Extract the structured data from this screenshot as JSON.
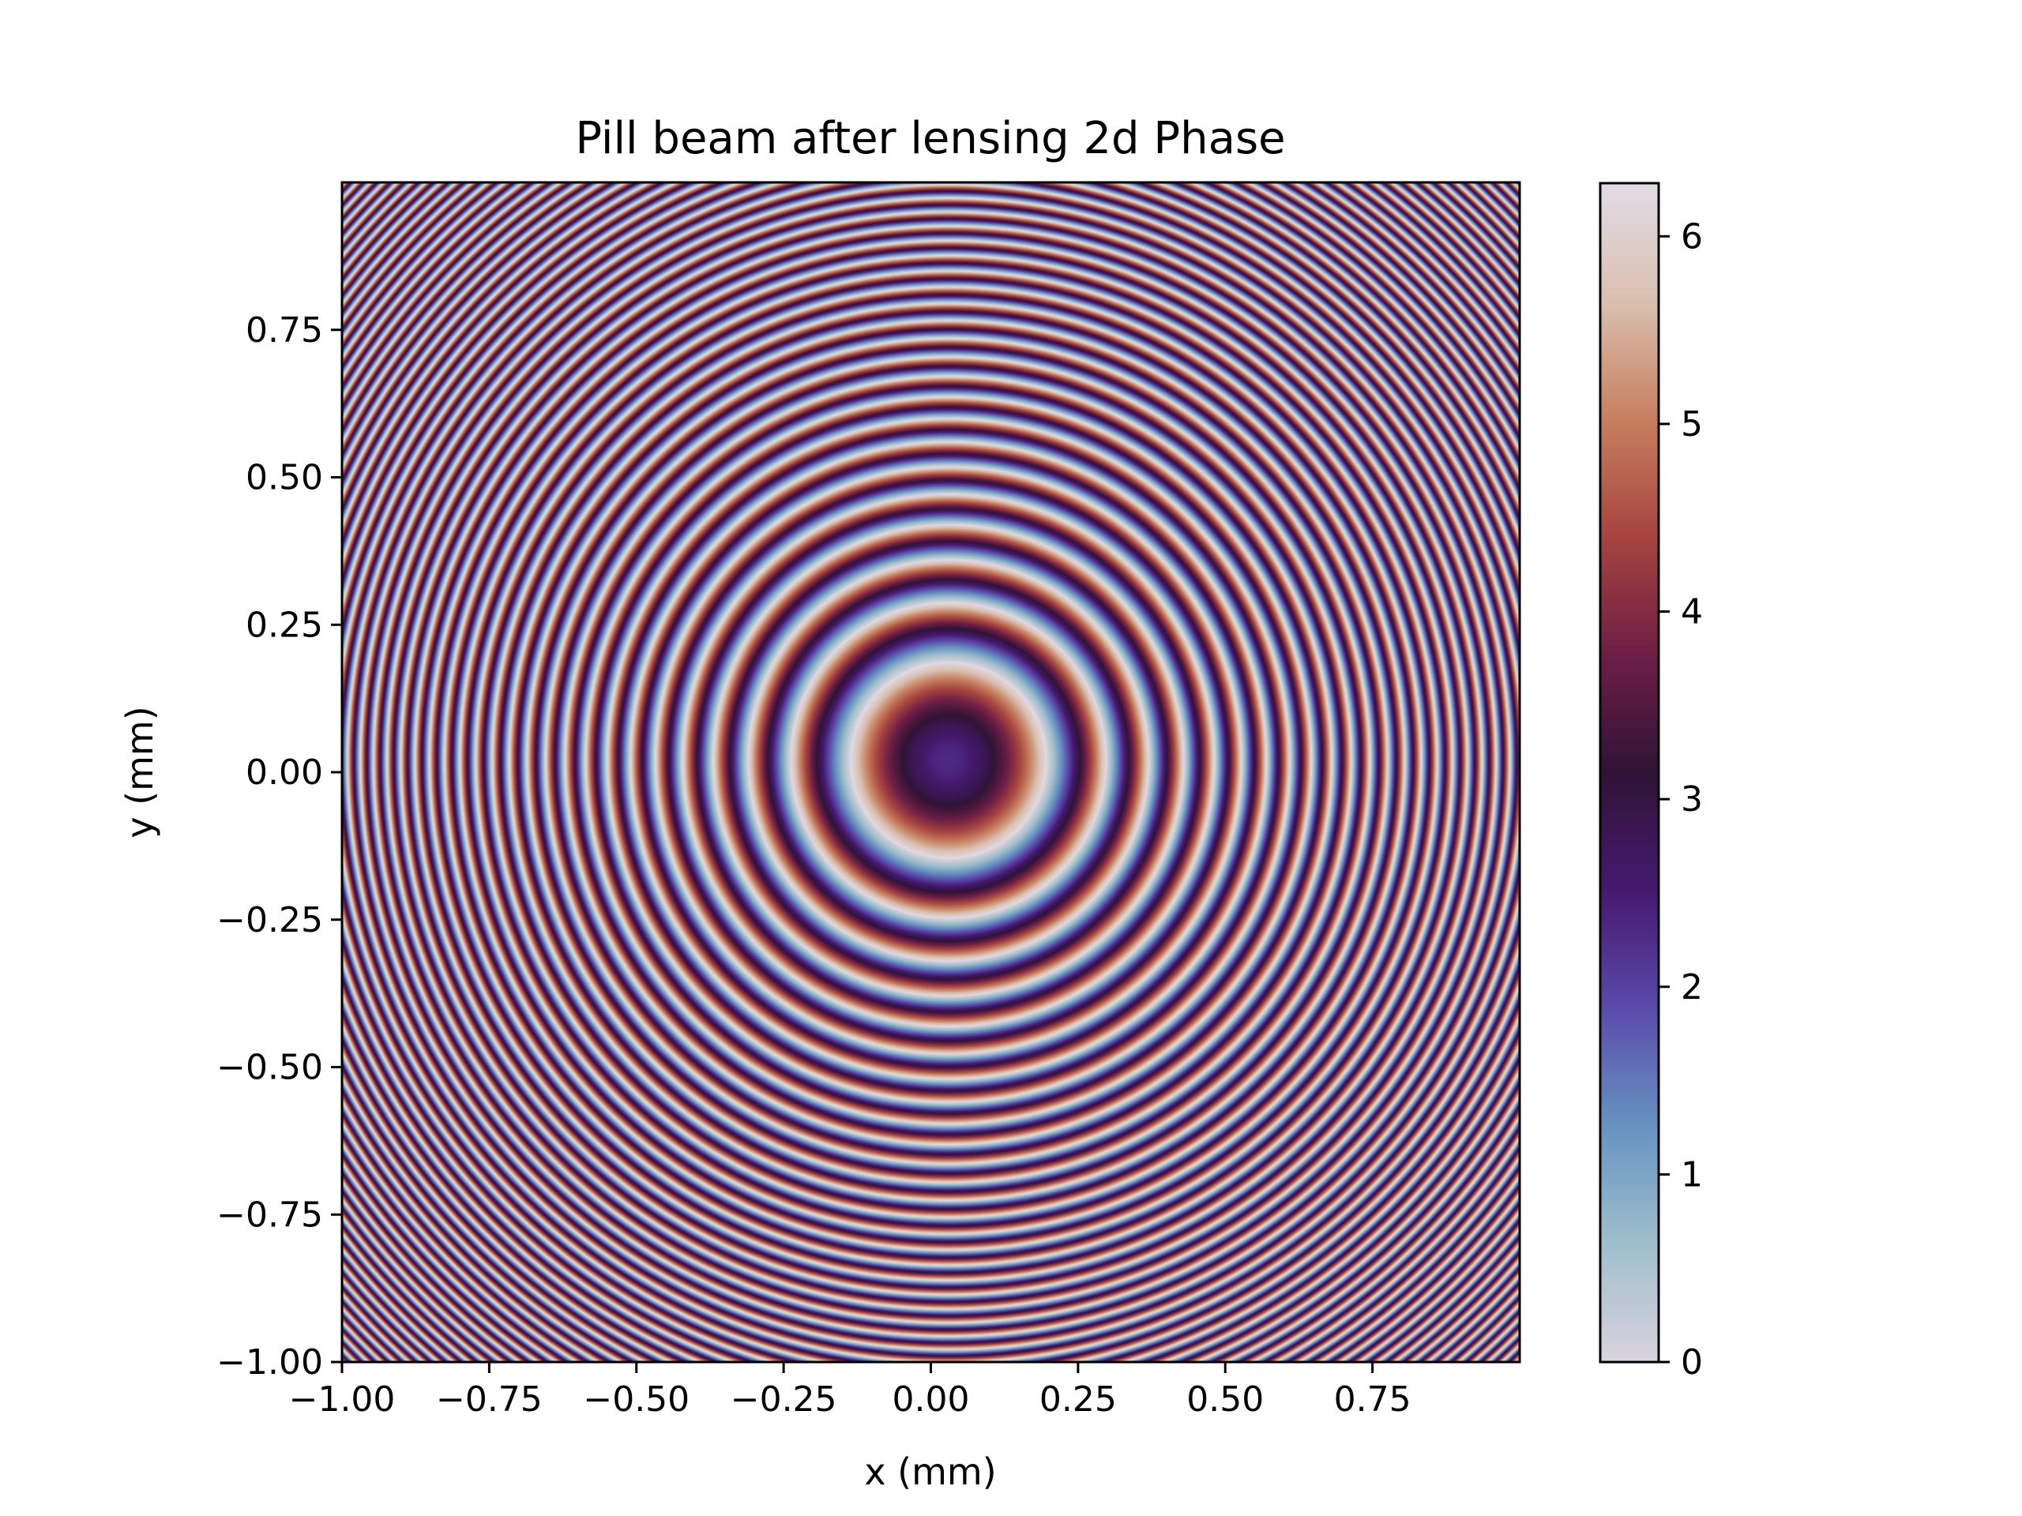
{
  "chart_data": {
    "type": "heatmap",
    "title": "Pill beam after lensing 2d Phase",
    "xlabel": "x (mm)",
    "ylabel": "y (mm)",
    "xlim": [
      -1.0,
      1.0
    ],
    "ylim": [
      -1.0,
      1.0
    ],
    "x_ticks": [
      "−1.00",
      "−0.75",
      "−0.50",
      "−0.25",
      "0.00",
      "0.25",
      "0.50",
      "0.75"
    ],
    "x_tick_values": [
      -1.0,
      -0.75,
      -0.5,
      -0.25,
      0.0,
      0.25,
      0.5,
      0.75
    ],
    "y_ticks": [
      "−1.00",
      "−0.75",
      "−0.50",
      "−0.25",
      "0.00",
      "0.25",
      "0.50",
      "0.75"
    ],
    "y_tick_values": [
      -1.0,
      -0.75,
      -0.5,
      -0.25,
      0.0,
      0.25,
      0.5,
      0.75
    ],
    "colorbar": {
      "ticks": [
        "0",
        "1",
        "2",
        "3",
        "4",
        "5",
        "6"
      ],
      "tick_values": [
        0,
        1,
        2,
        3,
        4,
        5,
        6
      ],
      "range": [
        0,
        6.283185307
      ],
      "colormap": "twilight_shifted",
      "colormap_stops": [
        "#d9d3de",
        "#9fbfcb",
        "#6693c1",
        "#5b4bab",
        "#45196f",
        "#2f1436",
        "#6e1e45",
        "#a6443f",
        "#c7805f",
        "#d9c0b0",
        "#e2dbe5"
      ]
    },
    "phase_model": {
      "center": [
        0.03,
        0.02
      ],
      "center_phase": 2.3,
      "ring_radii_sample": [
        0.2,
        0.28,
        0.35
      ]
    },
    "grid": false,
    "legend": "none"
  }
}
